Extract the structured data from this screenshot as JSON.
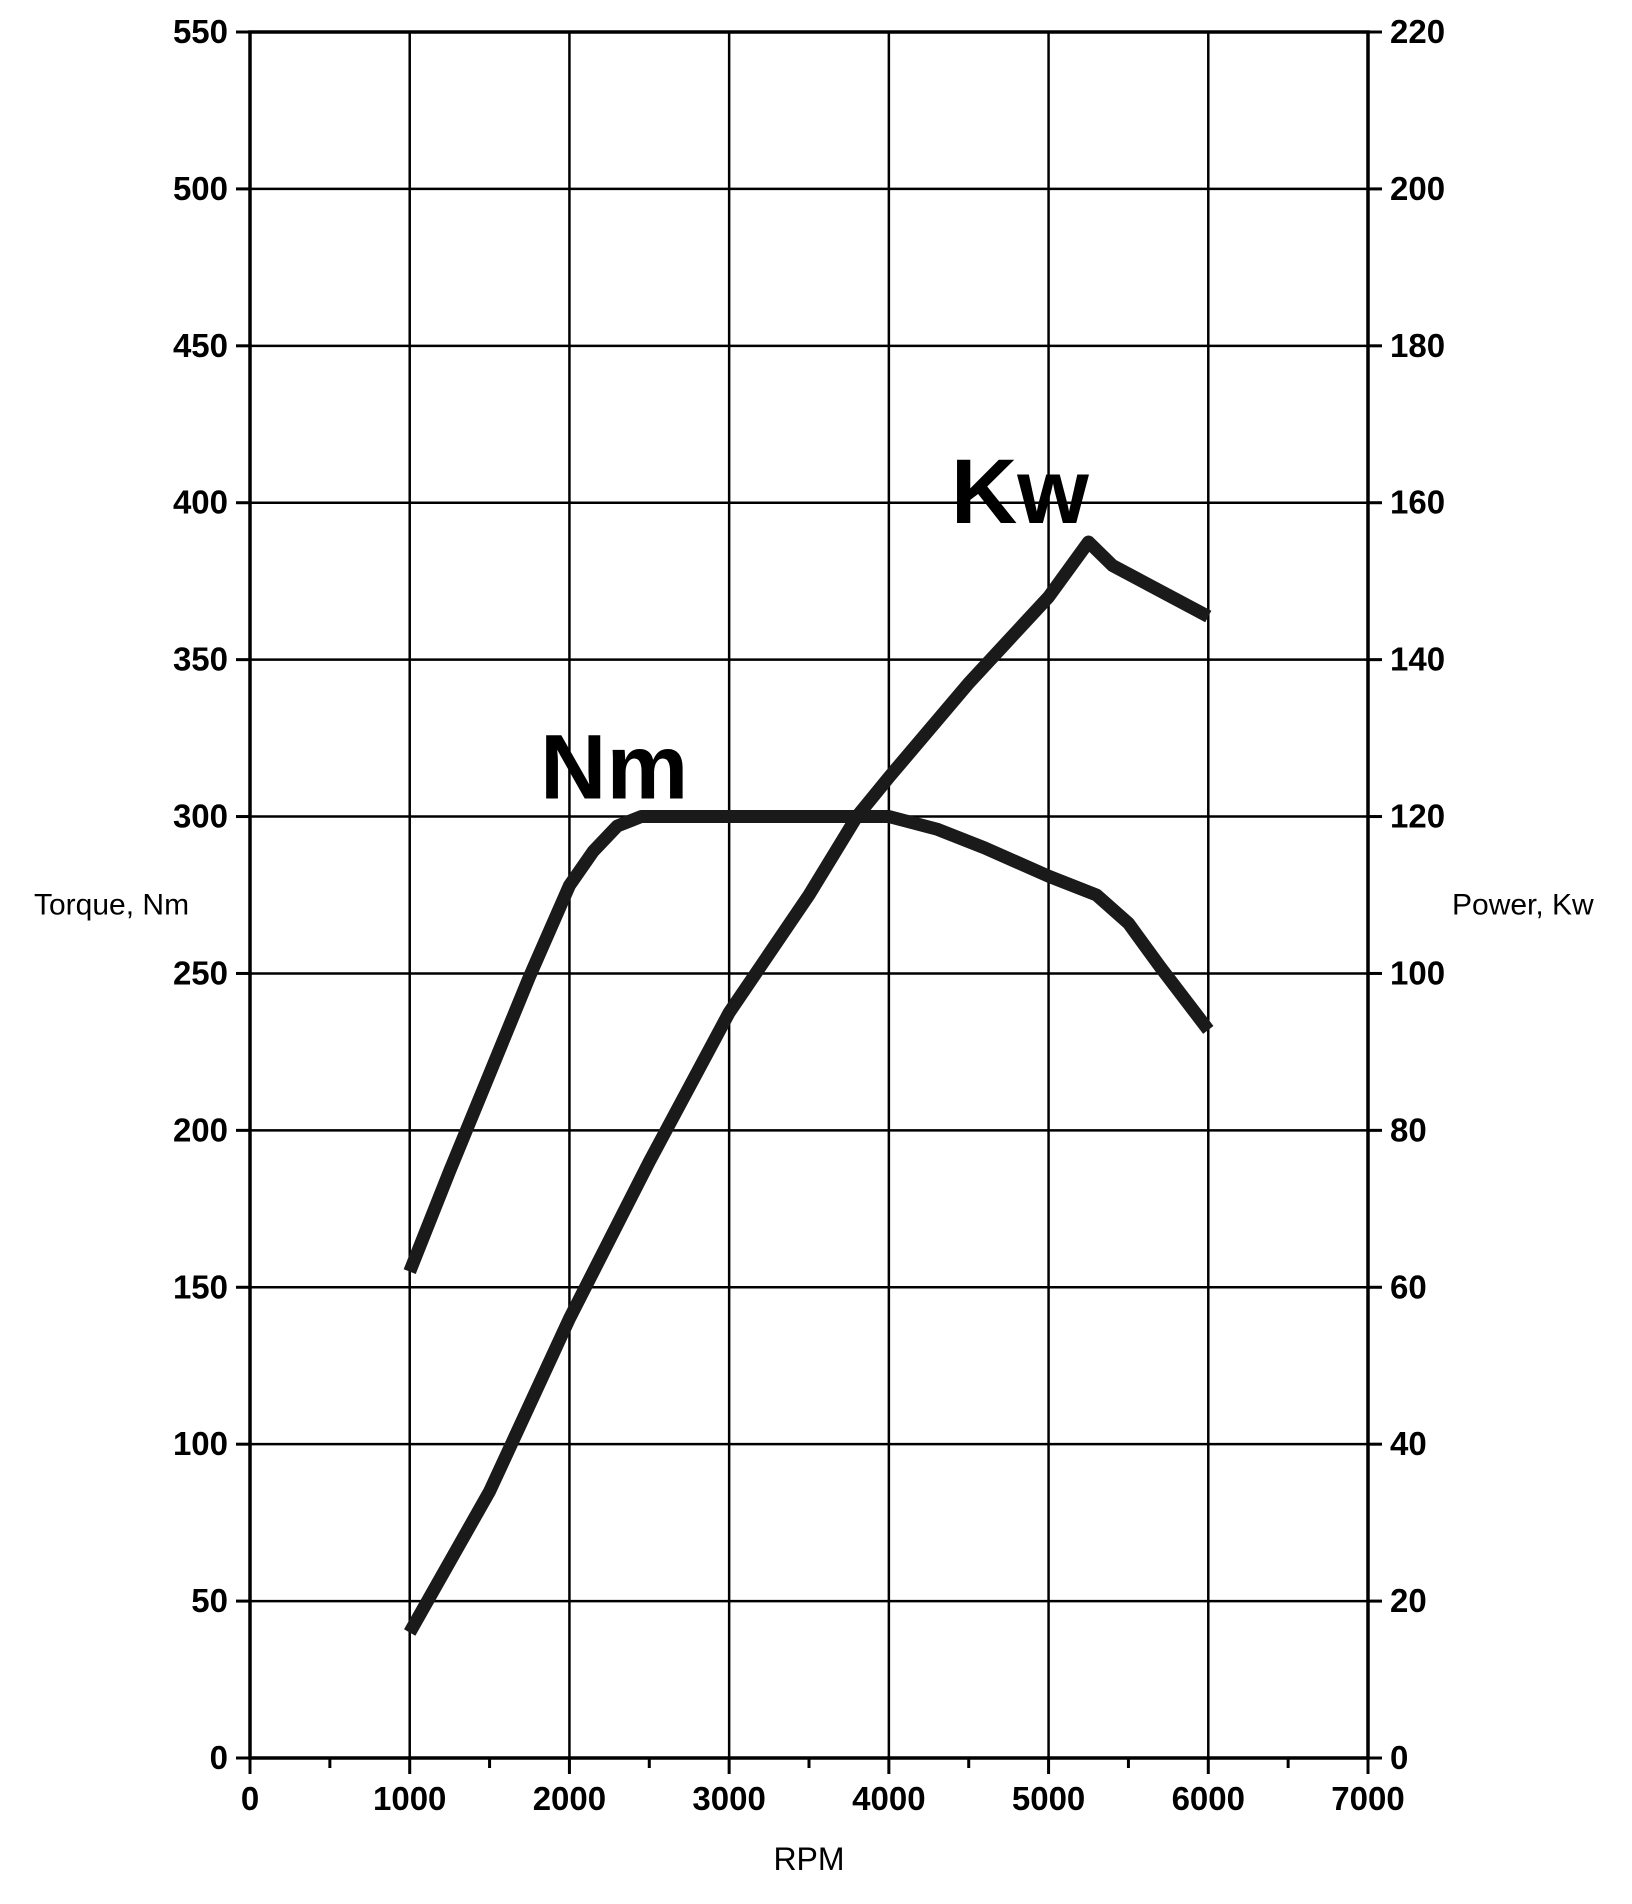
{
  "page": {
    "background": "#ffffff"
  },
  "chart_data": {
    "type": "line",
    "title": "",
    "xlabel": "RPM",
    "ylabel_left": "Torque, Nm",
    "ylabel_right": "Power, Kw",
    "x_range": [
      0,
      7000
    ],
    "x_tick_step": 1000,
    "x_minor_step": 500,
    "x_tick_labels": [
      "0",
      "1000",
      "2000",
      "3000",
      "4000",
      "5000",
      "6000",
      "7000"
    ],
    "y_left_range": [
      0,
      550
    ],
    "y_left_step": 50,
    "y_left_tick_labels": [
      "0",
      "50",
      "100",
      "150",
      "200",
      "250",
      "300",
      "350",
      "400",
      "450",
      "500",
      "550"
    ],
    "y_right_range": [
      0,
      220
    ],
    "y_right_step": 20,
    "y_right_tick_labels": [
      "0",
      "20",
      "40",
      "60",
      "80",
      "100",
      "120",
      "140",
      "160",
      "180",
      "200",
      "220"
    ],
    "grid": true,
    "legend_position": "inline-curve-labels",
    "grid_color": "#000000",
    "axis_color": "#000000",
    "line_color": "#1a1a1a",
    "series": [
      {
        "name": "Nm",
        "axis": "left",
        "label": {
          "text": "Nm",
          "x": 2280,
          "y": 316
        },
        "points": [
          [
            1000,
            155
          ],
          [
            1250,
            187
          ],
          [
            1500,
            218
          ],
          [
            1750,
            249
          ],
          [
            2000,
            278
          ],
          [
            2150,
            289
          ],
          [
            2300,
            297
          ],
          [
            2450,
            300
          ],
          [
            3000,
            300
          ],
          [
            3500,
            300
          ],
          [
            4000,
            300
          ],
          [
            4300,
            296
          ],
          [
            4600,
            290
          ],
          [
            5000,
            281
          ],
          [
            5300,
            275
          ],
          [
            5500,
            266
          ],
          [
            5700,
            252
          ],
          [
            6000,
            232
          ]
        ]
      },
      {
        "name": "Kw",
        "axis": "right",
        "label": {
          "text": "Kw",
          "x": 4820,
          "y": 161.5
        },
        "points": [
          [
            1000,
            16
          ],
          [
            1500,
            34
          ],
          [
            2000,
            56
          ],
          [
            2500,
            76
          ],
          [
            3000,
            95
          ],
          [
            3500,
            110
          ],
          [
            3800,
            120
          ],
          [
            4000,
            125
          ],
          [
            4500,
            137
          ],
          [
            5000,
            148
          ],
          [
            5250,
            155
          ],
          [
            5400,
            152
          ],
          [
            6000,
            145.5
          ]
        ]
      }
    ]
  }
}
